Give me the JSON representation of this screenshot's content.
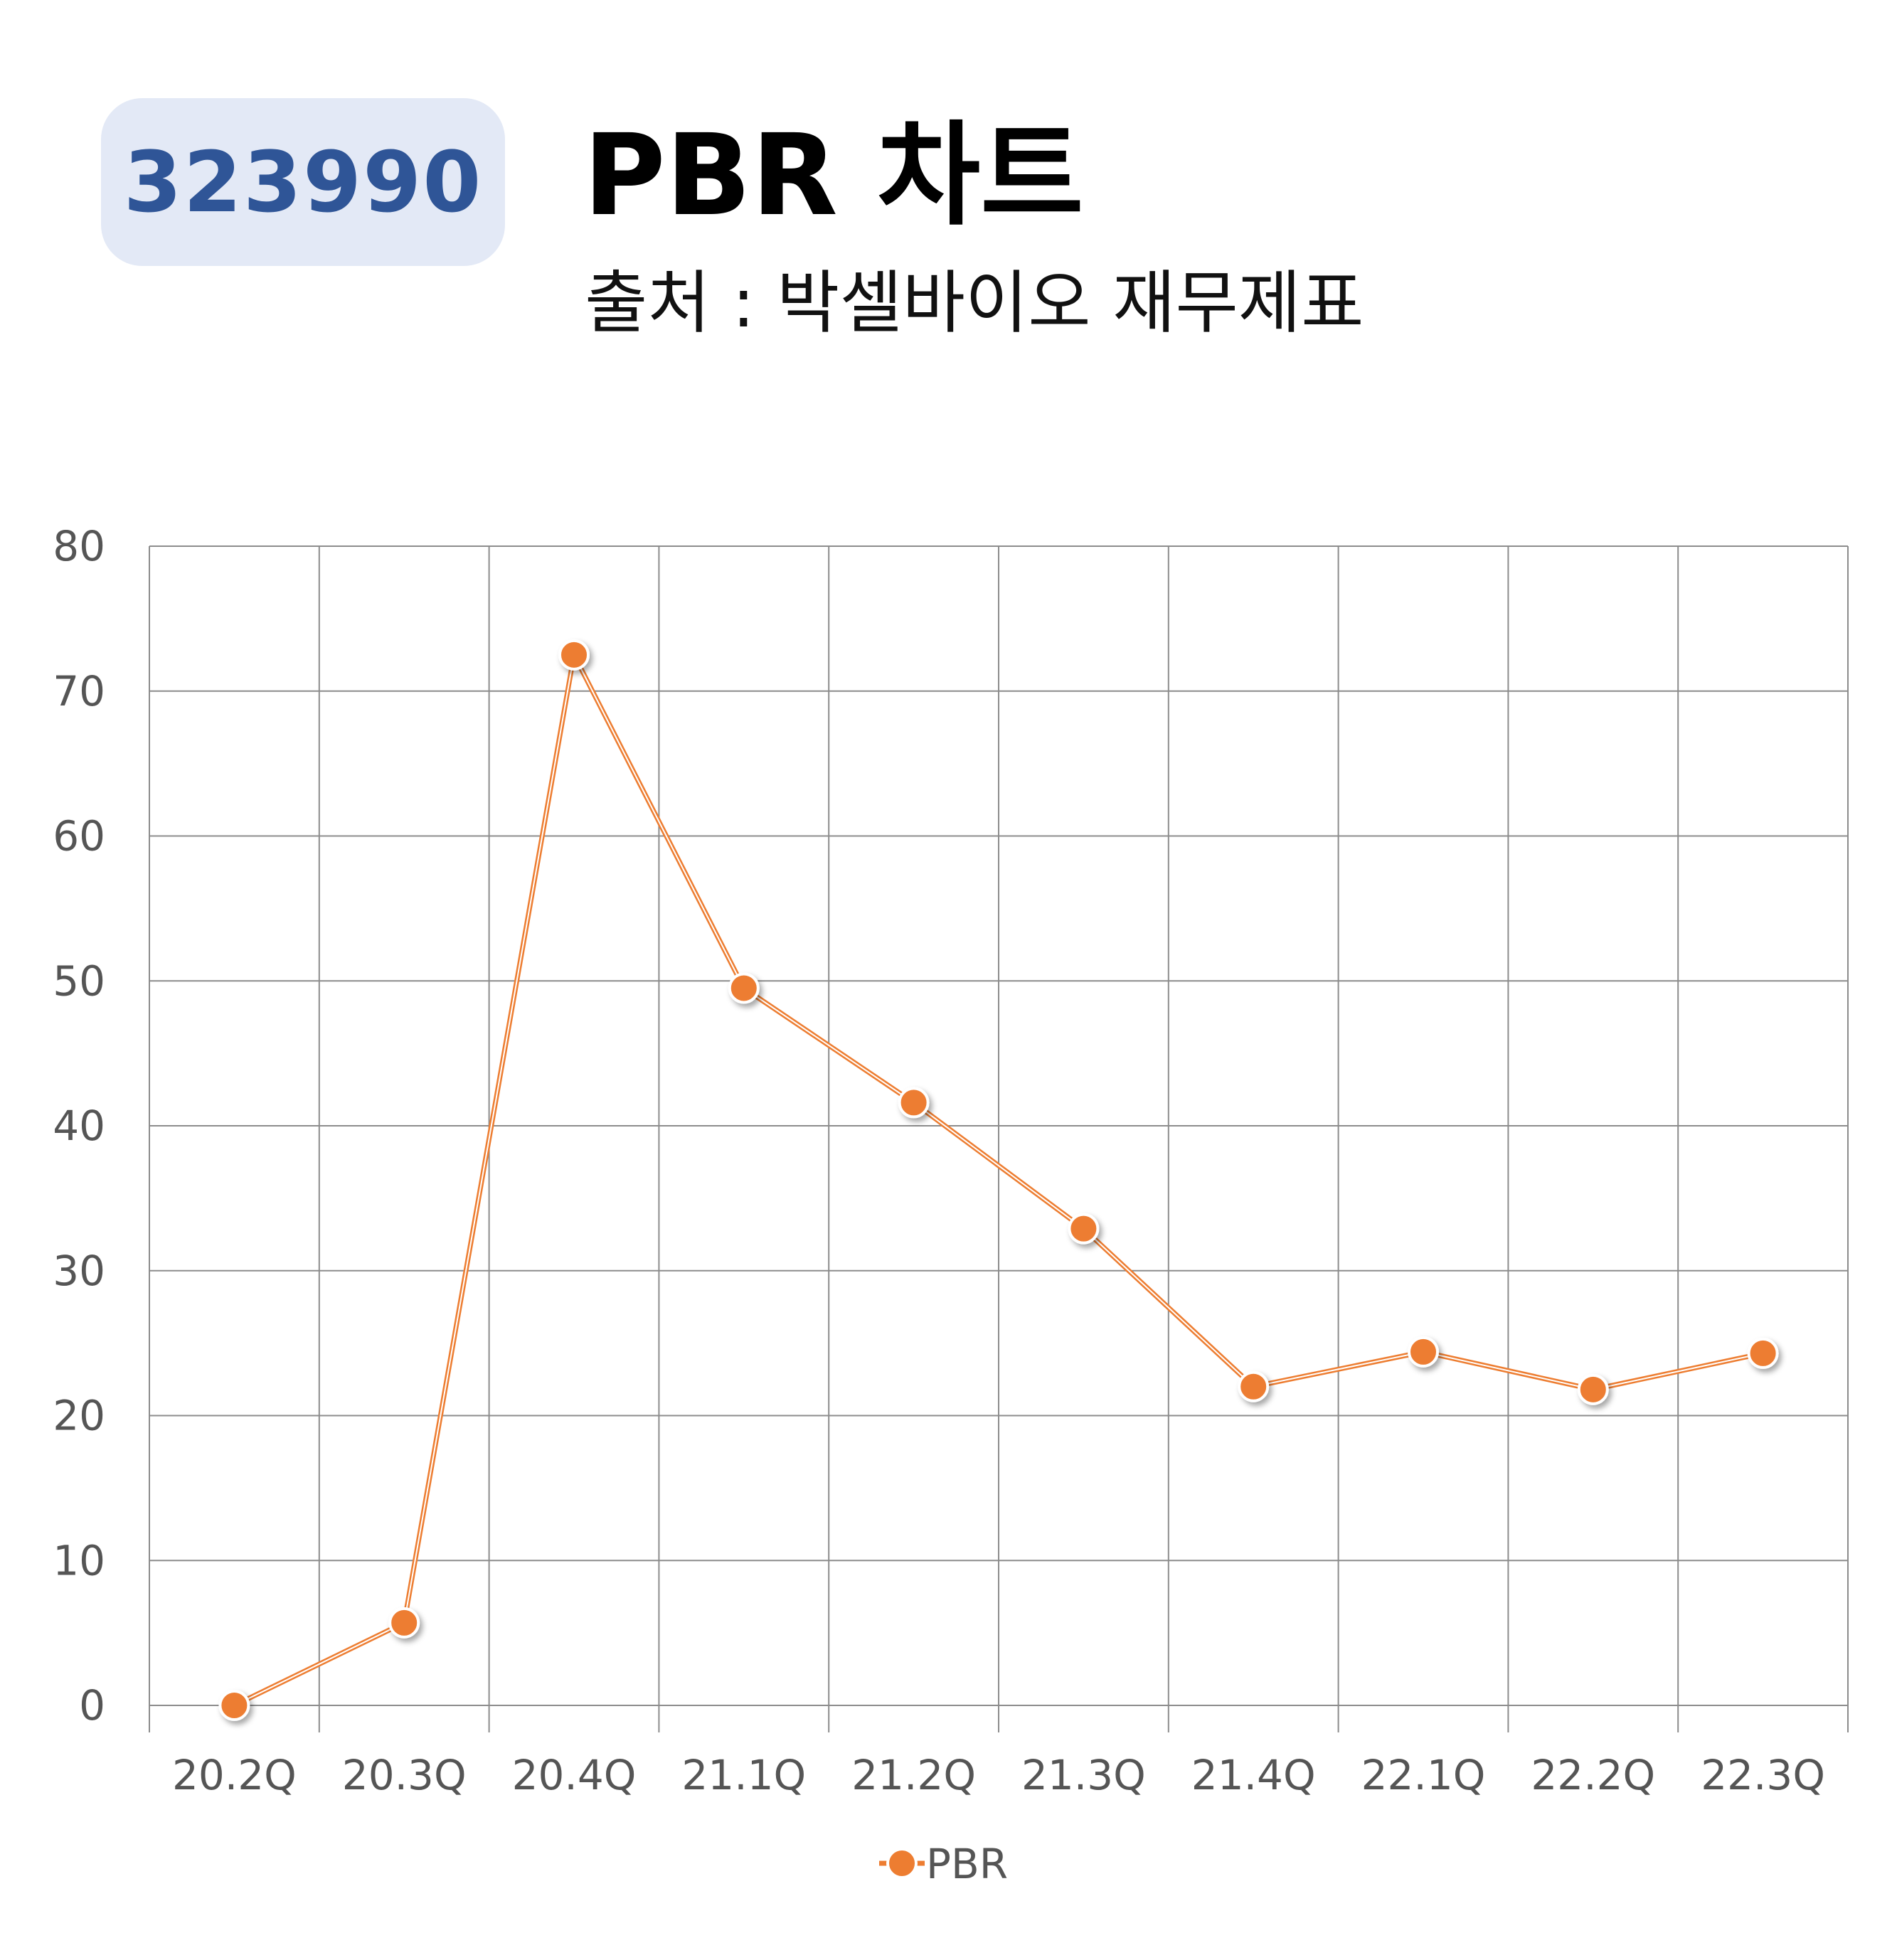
{
  "badge": {
    "code": "323990"
  },
  "header": {
    "title": "PBR 차트",
    "subtitle": "출처 : 박셀바이오 재무제표"
  },
  "colors": {
    "series": "#ed7d31",
    "grid": "#8c8c8c",
    "badge_bg": "#e3e9f6",
    "badge_text": "#2f5597"
  },
  "chart_data": {
    "type": "line",
    "title": "PBR 차트",
    "subtitle": "출처 : 박셀바이오 재무제표",
    "categories": [
      "20.2Q",
      "20.3Q",
      "20.4Q",
      "21.1Q",
      "21.2Q",
      "21.3Q",
      "21.4Q",
      "22.1Q",
      "22.2Q",
      "22.3Q"
    ],
    "series": [
      {
        "name": "PBR",
        "values": [
          0,
          5.7,
          72.5,
          49.5,
          41.6,
          32.9,
          22.0,
          24.4,
          21.8,
          24.3
        ]
      }
    ],
    "ylim": [
      0,
      80
    ],
    "yticks": [
      0,
      10,
      20,
      30,
      40,
      50,
      60,
      70,
      80
    ],
    "grid": true,
    "legend": "bottom-center"
  }
}
